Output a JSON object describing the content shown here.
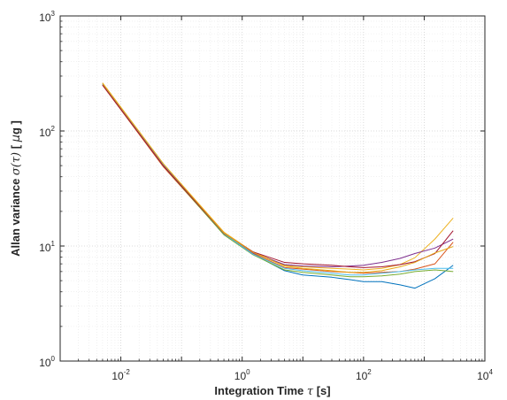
{
  "chart_data": {
    "type": "line",
    "title": "",
    "xlabel_parts": [
      {
        "text": "Integration Time ",
        "style": "plain"
      },
      {
        "text": "τ",
        "style": "greek"
      },
      {
        "text": " [s]",
        "style": "plain"
      }
    ],
    "ylabel_parts": [
      {
        "text": "Allan variance ",
        "style": "plain"
      },
      {
        "text": "σ(τ)",
        "style": "greek"
      },
      {
        "text": " [ ",
        "style": "plain"
      },
      {
        "text": "μ",
        "style": "sym"
      },
      {
        "text": "g ]",
        "style": "plain"
      }
    ],
    "x_scale": "log",
    "y_scale": "log",
    "xlim": [
      0.001,
      10000
    ],
    "ylim": [
      1,
      1000
    ],
    "x_ticks": [
      {
        "base": "10",
        "exp": "-2",
        "value": 0.01
      },
      {
        "base": "10",
        "exp": "0",
        "value": 1
      },
      {
        "base": "10",
        "exp": "2",
        "value": 100
      },
      {
        "base": "10",
        "exp": "4",
        "value": 10000
      }
    ],
    "y_ticks": [
      {
        "base": "10",
        "exp": "0",
        "value": 1
      },
      {
        "base": "10",
        "exp": "1",
        "value": 10
      },
      {
        "base": "10",
        "exp": "2",
        "value": 100
      },
      {
        "base": "10",
        "exp": "3",
        "value": 1000
      }
    ],
    "grid": true,
    "legend": "none",
    "x": [
      0.005,
      0.05,
      0.5,
      1.5,
      5,
      10,
      30,
      60,
      100,
      200,
      400,
      700,
      1500,
      3000
    ],
    "series": [
      {
        "color": "#0072BD",
        "values": [
          258,
          51,
          12.9,
          8.5,
          6.1,
          5.6,
          5.35,
          5.1,
          4.9,
          4.9,
          4.6,
          4.3,
          5.2,
          6.8
        ]
      },
      {
        "color": "#D95319",
        "values": [
          250,
          49,
          12.6,
          8.6,
          6.5,
          6.3,
          6.0,
          5.9,
          5.8,
          5.9,
          6.0,
          6.3,
          7.0,
          10.8
        ]
      },
      {
        "color": "#EDB120",
        "values": [
          262,
          52,
          13.2,
          8.9,
          6.8,
          6.6,
          6.4,
          6.3,
          6.2,
          6.4,
          6.9,
          7.9,
          11.5,
          17.5
        ]
      },
      {
        "color": "#7E2F8E",
        "values": [
          254,
          50,
          12.7,
          8.7,
          6.9,
          6.7,
          6.6,
          6.7,
          6.8,
          7.2,
          7.8,
          8.6,
          9.6,
          11.5
        ]
      },
      {
        "color": "#77AC30",
        "values": [
          252,
          50,
          12.5,
          8.4,
          6.2,
          5.9,
          5.6,
          5.4,
          5.4,
          5.5,
          5.7,
          6.0,
          6.2,
          6.0
        ]
      },
      {
        "color": "#4DBEEE",
        "values": [
          256,
          51,
          12.8,
          8.5,
          6.4,
          6.1,
          5.8,
          5.6,
          5.6,
          5.8,
          6.0,
          6.2,
          6.4,
          6.4
        ]
      },
      {
        "color": "#A2142F",
        "values": [
          251,
          50,
          12.9,
          8.9,
          7.2,
          7.0,
          6.8,
          6.6,
          6.5,
          6.6,
          6.9,
          7.3,
          8.6,
          13.6
        ]
      },
      {
        "color": "#E6A817",
        "values": [
          259,
          52,
          13.0,
          8.8,
          6.7,
          6.4,
          6.1,
          5.9,
          5.9,
          6.1,
          6.6,
          7.2,
          8.7,
          9.9
        ]
      }
    ]
  }
}
